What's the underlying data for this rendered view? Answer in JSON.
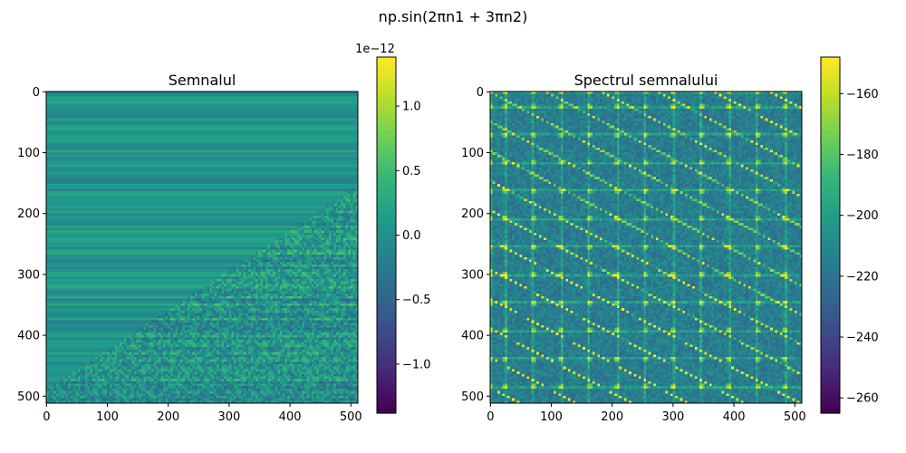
{
  "figure": {
    "title": "np.sin(2πn1 + 3πn2)",
    "background": "#ffffff"
  },
  "chart_data": [
    {
      "type": "heatmap",
      "title": "Semnalul",
      "xlabel": "",
      "ylabel": "",
      "shape": [
        512,
        512
      ],
      "xlim": [
        0,
        511
      ],
      "ylim": [
        511,
        0
      ],
      "x_ticks": [
        0,
        100,
        200,
        300,
        400,
        500
      ],
      "y_ticks": [
        0,
        100,
        200,
        300,
        400,
        500
      ],
      "colormap": "viridis",
      "grid": false,
      "description_of_values": "near-zero residual values of order 1e-12; horizontal banding in upper-left triangle, checkered diagonal stripes in lower-right triangle",
      "colorbar": {
        "range": [
          -1.38e-12,
          1.38e-12
        ],
        "ticks": [
          -1.0,
          -0.5,
          0.0,
          0.5,
          1.0
        ],
        "tick_labels": [
          "−1.0",
          "−0.5",
          "0.0",
          "0.5",
          "1.0"
        ],
        "scale_factor": 1e-12,
        "offset_label": "1e−12"
      }
    },
    {
      "type": "heatmap",
      "title": "Spectrul semnalului",
      "xlabel": "",
      "ylabel": "",
      "shape": [
        512,
        512
      ],
      "xlim": [
        0,
        511
      ],
      "ylim": [
        511,
        0
      ],
      "x_ticks": [
        0,
        100,
        200,
        300,
        400,
        500
      ],
      "y_ticks": [
        0,
        100,
        200,
        300,
        400,
        500
      ],
      "colormap": "viridis",
      "grid": false,
      "description_of_values": "magnitude spectrum in dB; bright grid lines roughly every 46 bins with diagonal streaks, background around -210 dB",
      "grid_line_positions": [
        0,
        23,
        69,
        115,
        161,
        207,
        253,
        299,
        345,
        391,
        437,
        483
      ],
      "colorbar": {
        "range": [
          -265,
          -148
        ],
        "ticks": [
          -260,
          -240,
          -220,
          -200,
          -180,
          -160
        ],
        "tick_labels": [
          "−260",
          "−240",
          "−220",
          "−200",
          "−180",
          "−160"
        ]
      }
    }
  ]
}
